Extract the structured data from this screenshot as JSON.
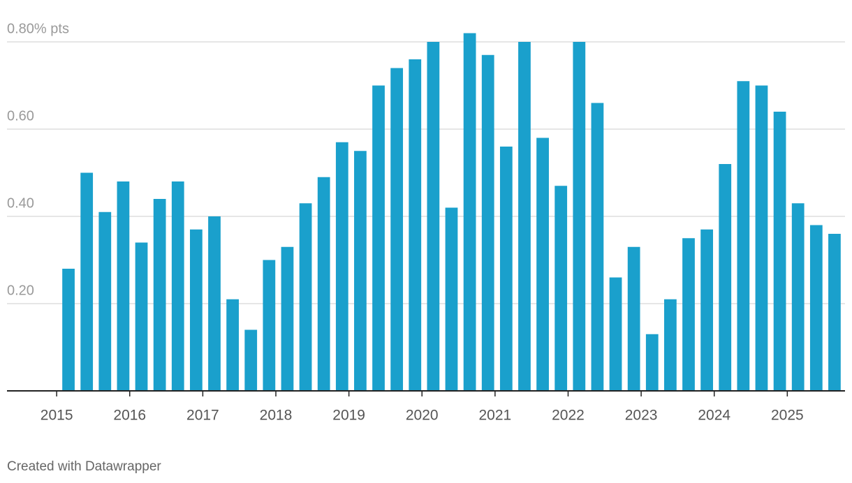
{
  "chart_data": {
    "type": "bar",
    "categories": [
      null,
      null,
      null,
      null,
      null,
      null,
      null,
      null,
      null,
      null,
      null,
      null,
      null,
      null,
      null,
      null,
      null,
      null,
      null,
      null,
      null,
      null,
      null,
      null,
      null,
      null,
      null,
      null,
      null,
      null,
      null,
      null,
      null,
      null,
      null,
      null,
      null,
      null,
      null,
      null,
      null,
      null,
      null
    ],
    "values": [
      0.28,
      0.5,
      0.41,
      0.48,
      0.34,
      0.44,
      0.48,
      0.37,
      0.4,
      0.21,
      0.14,
      0.3,
      0.33,
      0.43,
      0.49,
      0.57,
      0.55,
      0.7,
      0.74,
      0.76,
      0.8,
      0.42,
      0.82,
      0.77,
      0.56,
      0.8,
      0.58,
      0.47,
      0.8,
      0.66,
      0.26,
      0.33,
      0.13,
      0.21,
      0.35,
      0.37,
      0.52,
      0.71,
      0.7,
      0.64,
      0.43,
      0.38,
      0.36
    ],
    "color": "#1aa0cc",
    "ylim": [
      0,
      0.8
    ],
    "yticks": [
      {
        "value": 0.2,
        "label": "0.20"
      },
      {
        "value": 0.4,
        "label": "0.40"
      },
      {
        "value": 0.6,
        "label": "0.60"
      },
      {
        "value": 0.8,
        "label": "0.80% pts"
      }
    ],
    "xlim": [
      2014.32,
      2025.79
    ],
    "xticks": [
      2015,
      2016,
      2017,
      2018,
      2019,
      2020,
      2021,
      2022,
      2023,
      2024,
      2025
    ],
    "grid": true,
    "source": "Created with Datawrapper"
  }
}
